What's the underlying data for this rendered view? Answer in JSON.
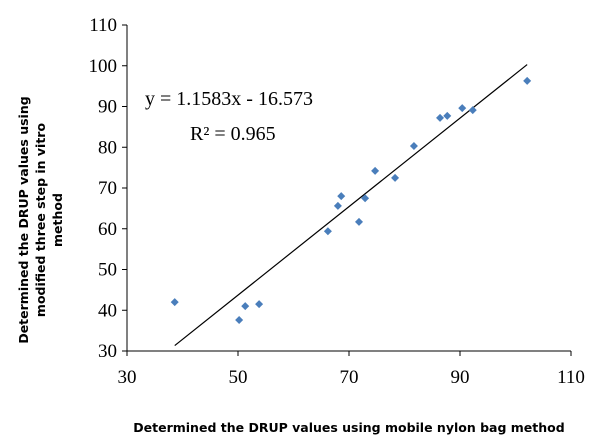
{
  "chart_data": {
    "type": "scatter",
    "xlabel": "Determined the DRUP values using mobile nylon bag method",
    "ylabel": [
      "Determined the DRUP  values using",
      "modified three step in vitro",
      "method"
    ],
    "annotations": [
      "y = 1.1583x - 16.573",
      "R² = 0.965"
    ],
    "color": "#4a7ebb",
    "x": [
      38.6,
      50.2,
      51.3,
      53.8,
      66.2,
      68.0,
      68.6,
      71.8,
      72.9,
      74.7,
      78.3,
      81.7,
      86.4,
      87.7,
      90.4,
      92.3,
      102.1
    ],
    "values": [
      42.0,
      37.6,
      41.0,
      41.5,
      59.4,
      65.6,
      68.0,
      61.7,
      67.5,
      74.2,
      72.5,
      80.3,
      87.2,
      87.7,
      89.6,
      89.1,
      96.3
    ],
    "xlim": [
      30,
      110
    ],
    "xticks": [
      30,
      50,
      70,
      90,
      110
    ],
    "ylim": [
      30,
      110
    ],
    "yticks": [
      30,
      40,
      50,
      60,
      70,
      80,
      90,
      100,
      110
    ]
  }
}
